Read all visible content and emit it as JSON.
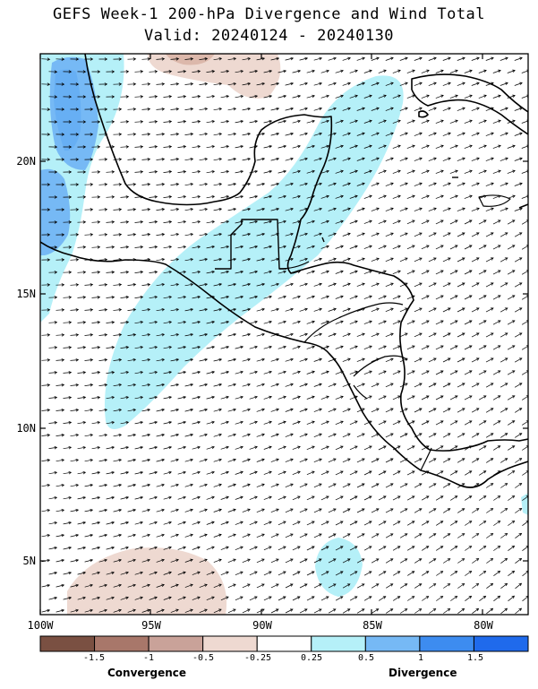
{
  "title": {
    "line1": "GEFS Week-1 200-hPa Divergence and Wind Total",
    "line2": "Valid: 20240124 - 20240130"
  },
  "axes": {
    "lat_labels": [
      "20N",
      "15N",
      "10N",
      "5N"
    ],
    "lon_labels": [
      "100W",
      "95W",
      "90W",
      "85W",
      "80W"
    ]
  },
  "colorbar": {
    "tick_labels": [
      "-1.5",
      "-1",
      "-0.5",
      "-0.25",
      "0.25",
      "0.5",
      "1",
      "1.5"
    ],
    "colors": [
      "#7a5042",
      "#a8776a",
      "#c9a299",
      "#eed9d1",
      "#ffffff",
      "#b5f0f8",
      "#76b9f5",
      "#3d8cf0",
      "#1f6aec"
    ],
    "left_title": "Convergence",
    "right_title": "Divergence"
  },
  "map_data": {
    "extent": {
      "lon_min": -100,
      "lon_max": -78,
      "lat_min": 3,
      "lat_max": 24
    },
    "divergence_regions": [
      {
        "level": "0.25-0.5",
        "label": "Central America / Gulf of Honduras band"
      },
      {
        "level": "0.25-0.5",
        "label": "Eastern Pacific off Guatemala"
      },
      {
        "level": "0.25-0.5",
        "label": "Pacific near 85W 6N"
      },
      {
        "level": "0.5-1",
        "label": "Western Gulf of Mexico"
      }
    ],
    "convergence_regions": [
      {
        "level": "-0.25--0.5",
        "label": "Southern Gulf of Mexico"
      },
      {
        "level": "-0.25--0.5",
        "label": "Eastern Pacific near 95W 4N"
      }
    ],
    "wind": "westerly to southwesterly flow"
  }
}
